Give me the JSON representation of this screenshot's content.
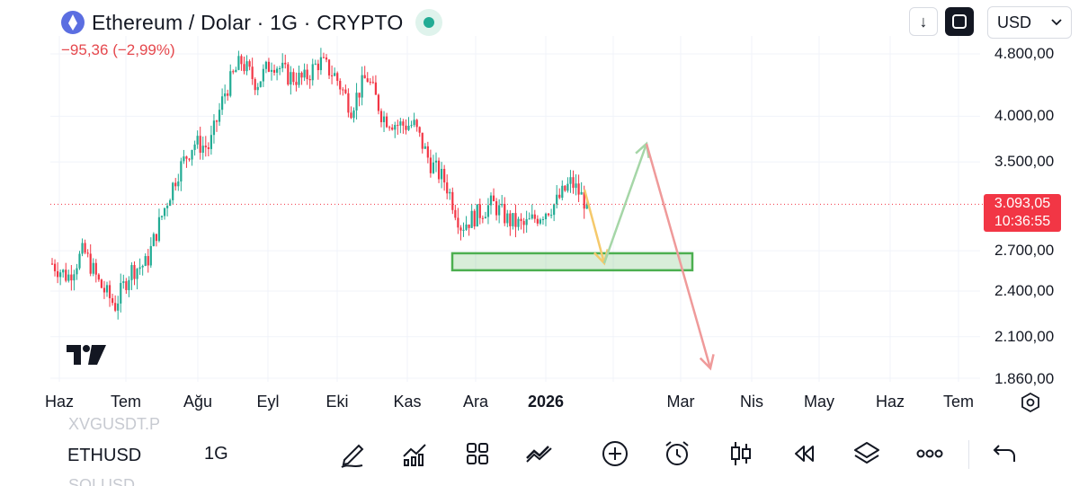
{
  "header": {
    "title": "Ethereum / Dolar · 1G · CRYPTO",
    "change": "−95,36 (−2,99%)"
  },
  "toolbar_top": {
    "download_icon": "arrow-down-icon",
    "fullscreen_icon": "fullscreen-icon",
    "currency": "USD"
  },
  "price_axis": {
    "labels": [
      "4.800,00",
      "4.000,00",
      "3.500,00",
      "2.700,00",
      "2.400,00",
      "2.100,00",
      "1.860,00"
    ],
    "current_price": "3.093,05",
    "countdown": "10:36:55"
  },
  "time_axis": {
    "labels": [
      "Haz",
      "Tem",
      "Ağu",
      "Eyl",
      "Eki",
      "Kas",
      "Ara",
      "2026",
      "Mar",
      "Nis",
      "May",
      "Haz",
      "Tem"
    ]
  },
  "bottom_bar": {
    "ghost_top": "XVGUSDT.P",
    "symbol": "ETHUSD",
    "timeframe": "1G",
    "ghost_bottom": "SOLUSD",
    "tools": [
      "pen-icon",
      "indicators-icon",
      "templates-icon",
      "chart-type-icon",
      "add-icon",
      "alarm-icon",
      "candles-icon",
      "replay-icon",
      "layers-icon",
      "more-icon",
      "undo-icon"
    ]
  },
  "colors": {
    "up": "#22ab94",
    "down": "#f23645",
    "zone": "#4caf50",
    "arrow_yellow": "#f5c96b",
    "arrow_green": "#a5d6a7",
    "arrow_red": "#ef9a9a"
  },
  "chart_data": {
    "type": "candlestick",
    "symbol": "ETHUSD",
    "scale": "log",
    "ylim": [
      1860,
      5000
    ],
    "price_ticks": [
      4800,
      4000,
      3500,
      2700,
      2400,
      2100,
      1860
    ],
    "current_price": 3093.05,
    "close_path": [
      [
        "Haz",
        2600
      ],
      [
        "Haz",
        2500
      ],
      [
        "Haz",
        2700
      ],
      [
        "Haz",
        2450
      ],
      [
        "Tem",
        2300
      ],
      [
        "Tem",
        2550
      ],
      [
        "Tem",
        2600
      ],
      [
        "Tem",
        3000
      ],
      [
        "Tem",
        3400
      ],
      [
        "Tem",
        3700
      ],
      [
        "Ağu",
        3650
      ],
      [
        "Ağu",
        4300
      ],
      [
        "Ağu",
        4700
      ],
      [
        "Ağu",
        4400
      ],
      [
        "Eyl",
        4700
      ],
      [
        "Eyl",
        4500
      ],
      [
        "Eyl",
        4450
      ],
      [
        "Eyl",
        4700
      ],
      [
        "Eyl",
        4500
      ],
      [
        "Eki",
        4100
      ],
      [
        "Eki",
        4500
      ],
      [
        "Eki",
        4000
      ],
      [
        "Eki",
        3900
      ],
      [
        "Kas",
        3900
      ],
      [
        "Kas",
        3500
      ],
      [
        "Kas",
        3300
      ],
      [
        "Kas",
        2900
      ],
      [
        "Ara",
        3000
      ],
      [
        "Ara",
        3100
      ],
      [
        "Ara",
        2950
      ],
      [
        "Ara",
        2900
      ],
      [
        "2026",
        3000
      ],
      [
        "2026",
        3100
      ],
      [
        "2026",
        3300
      ],
      [
        "2026",
        3093
      ]
    ],
    "annotations": {
      "zone": {
        "type": "rectangle",
        "price_from": 2550,
        "price_to": 2680,
        "color": "green"
      },
      "path": [
        {
          "price_from": 3250,
          "price_to": 2640,
          "color": "yellow"
        },
        {
          "price_from": 2640,
          "price_to": 3700,
          "color": "green"
        },
        {
          "price_from": 3700,
          "price_to": 1890,
          "color": "red"
        }
      ]
    }
  }
}
